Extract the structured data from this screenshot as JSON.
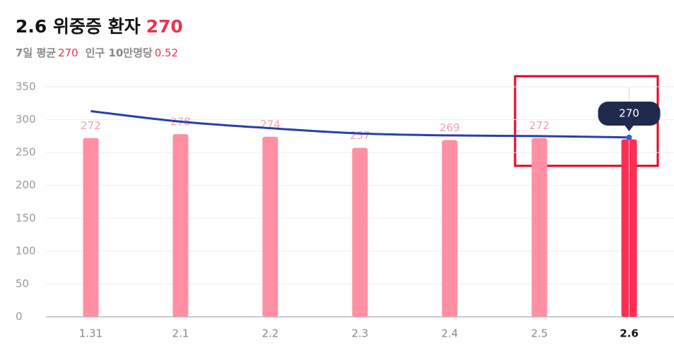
{
  "header": {
    "title": "2.6 위중증 환자",
    "count": "270",
    "avg_label": "7일 평균",
    "avg_value": "270",
    "per_label": "인구 10만명당",
    "per_value": "0.52"
  },
  "chart_data": {
    "type": "bar-line",
    "categories": [
      "1.31",
      "2.1",
      "2.2",
      "2.3",
      "2.4",
      "2.5",
      "2.6"
    ],
    "series": [
      {
        "type": "bar",
        "color": "#ff8fa2",
        "highlight_color": "#ff2d52",
        "values": [
          272,
          278,
          274,
          257,
          269,
          272,
          270
        ]
      },
      {
        "type": "line",
        "color": "#2641a8",
        "values": [
          313,
          297,
          287,
          279,
          276,
          275,
          273
        ]
      }
    ],
    "ylim": [
      0,
      350
    ],
    "yticks": [
      0,
      50,
      100,
      150,
      200,
      250,
      300,
      350
    ],
    "grid": true
  }
}
